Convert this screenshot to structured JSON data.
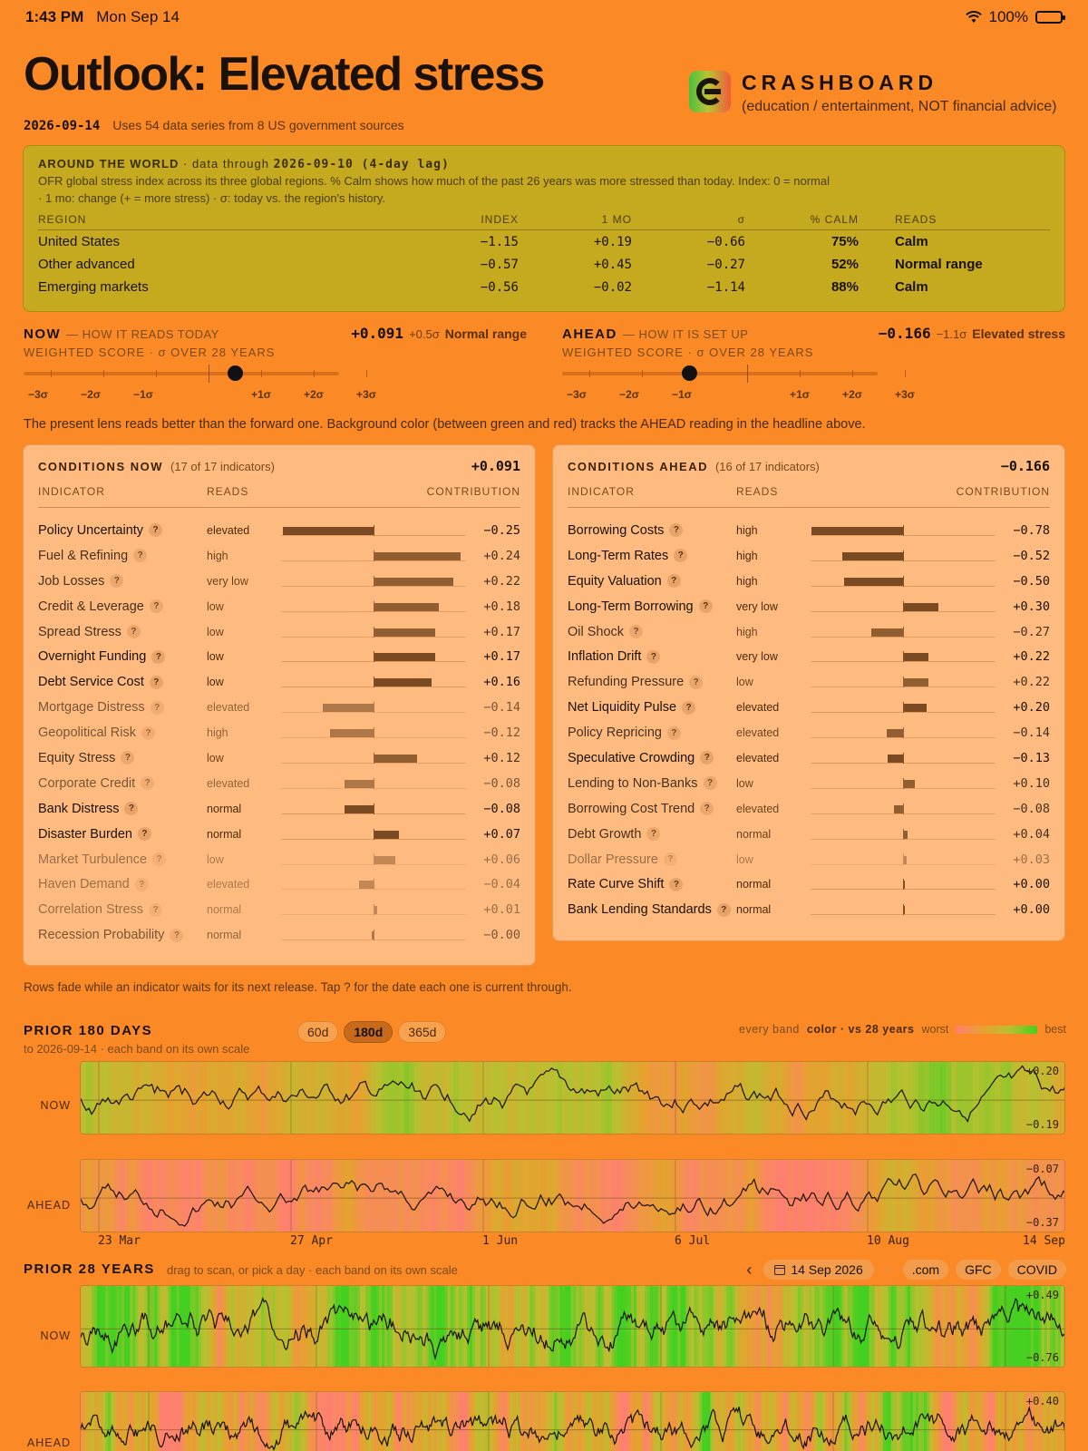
{
  "status": {
    "time": "1:43 PM",
    "day": "Mon Sep 14",
    "battery": "100%",
    "battery_level": 1.0
  },
  "header": {
    "headline": "Outlook: Elevated stress",
    "brand_name": "CRASHBOARD",
    "brand_sub": "(education / entertainment, NOT financial advice)",
    "date": "2026-09-14",
    "sources": "Uses 54 data series from 8 US government sources"
  },
  "world": {
    "title": "AROUND THE WORLD",
    "through_prefix": "· data through",
    "through": "2026-09-10 (4-day lag)",
    "desc1": "OFR global stress index across its three global regions. % Calm shows how much of the past 26 years was more stressed than today. Index: 0 = normal",
    "desc2": "· 1 mo: change (+ = more stress) · σ: today vs. the region's history.",
    "columns": [
      "REGION",
      "INDEX",
      "1 MO",
      "σ",
      "% CALM",
      "READS"
    ],
    "rows": [
      {
        "region": "United States",
        "index": "−1.15",
        "mo": "+0.19",
        "sigma": "−0.66",
        "calm": "75%",
        "reads": "Calm"
      },
      {
        "region": "Other advanced",
        "index": "−0.57",
        "mo": "+0.45",
        "sigma": "−0.27",
        "calm": "52%",
        "reads": "Normal range"
      },
      {
        "region": "Emerging markets",
        "index": "−0.56",
        "mo": "−0.02",
        "sigma": "−1.14",
        "calm": "88%",
        "reads": "Calm"
      }
    ]
  },
  "scale_labels": [
    "−3σ",
    "−2σ",
    "−1σ",
    "+1σ",
    "+2σ",
    "+3σ"
  ],
  "now_score": {
    "label": "NOW",
    "sub": "— HOW IT READS TODAY",
    "value": "+0.091",
    "sigma": "+0.5σ",
    "state": "Normal range",
    "weighted": "WEIGHTED SCORE · σ OVER 28 YEARS",
    "sigma_value": 0.5
  },
  "ahead_score": {
    "label": "AHEAD",
    "sub": "— HOW IT IS SET UP",
    "value": "−0.166",
    "sigma": "−1.1σ",
    "state": "Elevated stress",
    "weighted": "WEIGHTED SCORE · σ OVER 28 YEARS",
    "sigma_value": -1.1
  },
  "note": "The present lens reads better than the forward one. Background color (between green and red) tracks the AHEAD reading in the headline above.",
  "columns": {
    "indicator": "INDICATOR",
    "reads": "READS",
    "contribution": "CONTRIBUTION"
  },
  "cond_now": {
    "title": "CONDITIONS NOW",
    "count": "(17 of 17 indicators)",
    "total": "+0.091",
    "rows": [
      {
        "name": "Policy Uncertainty",
        "reads": "elevated",
        "value": -0.25,
        "label": "−0.25",
        "fade": 0
      },
      {
        "name": "Fuel & Refining",
        "reads": "high",
        "value": 0.24,
        "label": "+0.24",
        "fade": 1
      },
      {
        "name": "Job Losses",
        "reads": "very low",
        "value": 0.22,
        "label": "+0.22",
        "fade": 1
      },
      {
        "name": "Credit & Leverage",
        "reads": "low",
        "value": 0.18,
        "label": "+0.18",
        "fade": 1
      },
      {
        "name": "Spread Stress",
        "reads": "low",
        "value": 0.17,
        "label": "+0.17",
        "fade": 1
      },
      {
        "name": "Overnight Funding",
        "reads": "low",
        "value": 0.17,
        "label": "+0.17",
        "fade": 0
      },
      {
        "name": "Debt Service Cost",
        "reads": "low",
        "value": 0.16,
        "label": "+0.16",
        "fade": 0
      },
      {
        "name": "Mortgage Distress",
        "reads": "elevated",
        "value": -0.14,
        "label": "−0.14",
        "fade": 2
      },
      {
        "name": "Geopolitical Risk",
        "reads": "high",
        "value": -0.12,
        "label": "−0.12",
        "fade": 2
      },
      {
        "name": "Equity Stress",
        "reads": "low",
        "value": 0.12,
        "label": "+0.12",
        "fade": 1
      },
      {
        "name": "Corporate Credit",
        "reads": "elevated",
        "value": -0.08,
        "label": "−0.08",
        "fade": 2
      },
      {
        "name": "Bank Distress",
        "reads": "normal",
        "value": -0.08,
        "label": "−0.08",
        "fade": 0
      },
      {
        "name": "Disaster Burden",
        "reads": "normal",
        "value": 0.07,
        "label": "+0.07",
        "fade": 0
      },
      {
        "name": "Market Turbulence",
        "reads": "low",
        "value": 0.06,
        "label": "+0.06",
        "fade": 3
      },
      {
        "name": "Haven Demand",
        "reads": "elevated",
        "value": -0.04,
        "label": "−0.04",
        "fade": 3
      },
      {
        "name": "Correlation Stress",
        "reads": "normal",
        "value": 0.01,
        "label": "+0.01",
        "fade": 3
      },
      {
        "name": "Recession Probability",
        "reads": "normal",
        "value": -0.004,
        "label": "−0.00",
        "fade": 2
      }
    ]
  },
  "cond_ahead": {
    "title": "CONDITIONS AHEAD",
    "count": "(16 of 17 indicators)",
    "total": "−0.166",
    "rows": [
      {
        "name": "Borrowing Costs",
        "reads": "high",
        "value": -0.78,
        "label": "−0.78",
        "fade": 0
      },
      {
        "name": "Long-Term Rates",
        "reads": "high",
        "value": -0.52,
        "label": "−0.52",
        "fade": 0
      },
      {
        "name": "Equity Valuation",
        "reads": "high",
        "value": -0.5,
        "label": "−0.50",
        "fade": 0
      },
      {
        "name": "Long-Term Borrowing",
        "reads": "very low",
        "value": 0.3,
        "label": "+0.30",
        "fade": 0
      },
      {
        "name": "Oil Shock",
        "reads": "high",
        "value": -0.27,
        "label": "−0.27",
        "fade": 1
      },
      {
        "name": "Inflation Drift",
        "reads": "very low",
        "value": 0.22,
        "label": "+0.22",
        "fade": 0
      },
      {
        "name": "Refunding Pressure",
        "reads": "low",
        "value": 0.22,
        "label": "+0.22",
        "fade": 1
      },
      {
        "name": "Net Liquidity Pulse",
        "reads": "elevated",
        "value": 0.2,
        "label": "+0.20",
        "fade": 0
      },
      {
        "name": "Policy Repricing",
        "reads": "elevated",
        "value": -0.14,
        "label": "−0.14",
        "fade": 1
      },
      {
        "name": "Speculative Crowding",
        "reads": "elevated",
        "value": -0.13,
        "label": "−0.13",
        "fade": 0
      },
      {
        "name": "Lending to Non-Banks",
        "reads": "low",
        "value": 0.1,
        "label": "+0.10",
        "fade": 1
      },
      {
        "name": "Borrowing Cost Trend",
        "reads": "elevated",
        "value": -0.08,
        "label": "−0.08",
        "fade": 1
      },
      {
        "name": "Debt Growth",
        "reads": "normal",
        "value": 0.04,
        "label": "+0.04",
        "fade": 1
      },
      {
        "name": "Dollar Pressure",
        "reads": "low",
        "value": 0.03,
        "label": "+0.03",
        "fade": 3
      },
      {
        "name": "Rate Curve Shift",
        "reads": "normal",
        "value": 0.0,
        "label": "+0.00",
        "fade": 0
      },
      {
        "name": "Bank Lending Standards",
        "reads": "normal",
        "value": 0.0,
        "label": "+0.00",
        "fade": 0
      }
    ]
  },
  "fade_note": "Rows fade while an indicator waits for its next release. Tap ? for the date each one is current through.",
  "prior180": {
    "title": "PRIOR 180 DAYS",
    "sub": "to 2026-09-14 · each band on its own scale",
    "ranges": [
      "60d",
      "180d",
      "365d"
    ],
    "active_range": "180d",
    "legend_every": "every band",
    "legend_color": "color · vs 28 years",
    "legend_worst": "worst",
    "legend_best": "best",
    "now_label": "NOW",
    "ahead_label": "AHEAD",
    "now_max": "+0.20",
    "now_min": "−0.19",
    "ahead_max": "−0.07",
    "ahead_min": "−0.37",
    "x_labels": [
      "23 Mar",
      "27 Apr",
      "1 Jun",
      "6 Jul",
      "10 Aug",
      "14 Sep"
    ]
  },
  "prior28": {
    "title": "PRIOR 28 YEARS",
    "sub": "drag to scan, or pick a day · each band on its own scale",
    "date": "14 Sep 2026",
    "presets": [
      ".com",
      "GFC",
      "COVID"
    ],
    "now_label": "NOW",
    "ahead_label": "AHEAD",
    "now_max": "+0.49",
    "now_min": "−0.76",
    "ahead_max": "+0.40"
  },
  "colors": {
    "page": "#fb8a26",
    "world_panel": "#c5aa1f",
    "cond_panel": "#ffbb7f",
    "bar": "#7a4a22"
  }
}
